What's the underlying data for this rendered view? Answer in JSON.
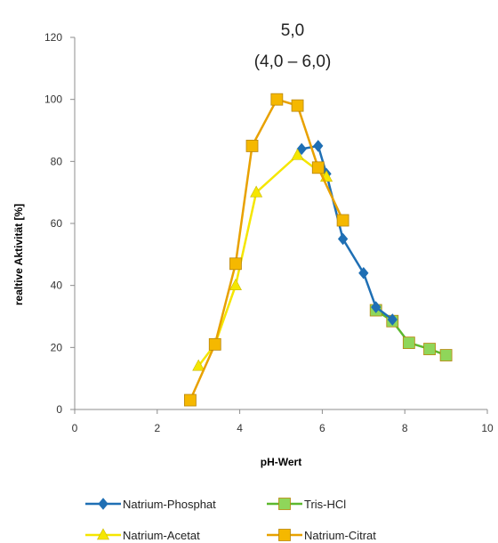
{
  "chart_data": {
    "type": "line",
    "title": "",
    "xlabel": "pH-Wert",
    "ylabel": "realtive Aktivität [%]",
    "xlim": [
      0,
      10
    ],
    "ylim": [
      0,
      120
    ],
    "xticks": [
      0,
      2,
      4,
      6,
      8,
      10
    ],
    "yticks": [
      0,
      20,
      40,
      60,
      80,
      100,
      120
    ],
    "grid": false,
    "legend_position": "bottom",
    "annotation": {
      "line1": "5,0",
      "line2": "(4,0 – 6,0)"
    },
    "series": [
      {
        "name": "Natrium-Phosphat",
        "color": "#1f6fb4",
        "marker": "diamond",
        "points": [
          [
            5.5,
            84
          ],
          [
            5.9,
            85
          ],
          [
            6.1,
            76
          ],
          [
            6.5,
            55
          ],
          [
            7.0,
            44
          ],
          [
            7.3,
            33
          ],
          [
            7.7,
            29
          ]
        ]
      },
      {
        "name": "Tris-HCl",
        "color": "#5cb82e",
        "marker_fill": "#8fd65a",
        "marker": "square",
        "points": [
          [
            7.3,
            32
          ],
          [
            7.7,
            28.5
          ],
          [
            8.1,
            21.5
          ],
          [
            8.6,
            19.5
          ],
          [
            9.0,
            17.5
          ]
        ]
      },
      {
        "name": "Natrium-Acetat",
        "color": "#f5e600",
        "marker": "triangle",
        "points": [
          [
            3.0,
            14
          ],
          [
            3.4,
            21
          ],
          [
            3.9,
            40
          ],
          [
            4.4,
            70
          ],
          [
            5.4,
            82
          ],
          [
            6.1,
            75
          ]
        ]
      },
      {
        "name": "Natrium-Citrat",
        "color": "#e8a100",
        "marker_fill": "#f5b800",
        "marker": "square",
        "points": [
          [
            2.8,
            3
          ],
          [
            3.4,
            21
          ],
          [
            3.9,
            47
          ],
          [
            4.3,
            85
          ],
          [
            4.9,
            100
          ],
          [
            5.4,
            98
          ],
          [
            5.9,
            78
          ],
          [
            6.5,
            61
          ]
        ]
      }
    ]
  }
}
